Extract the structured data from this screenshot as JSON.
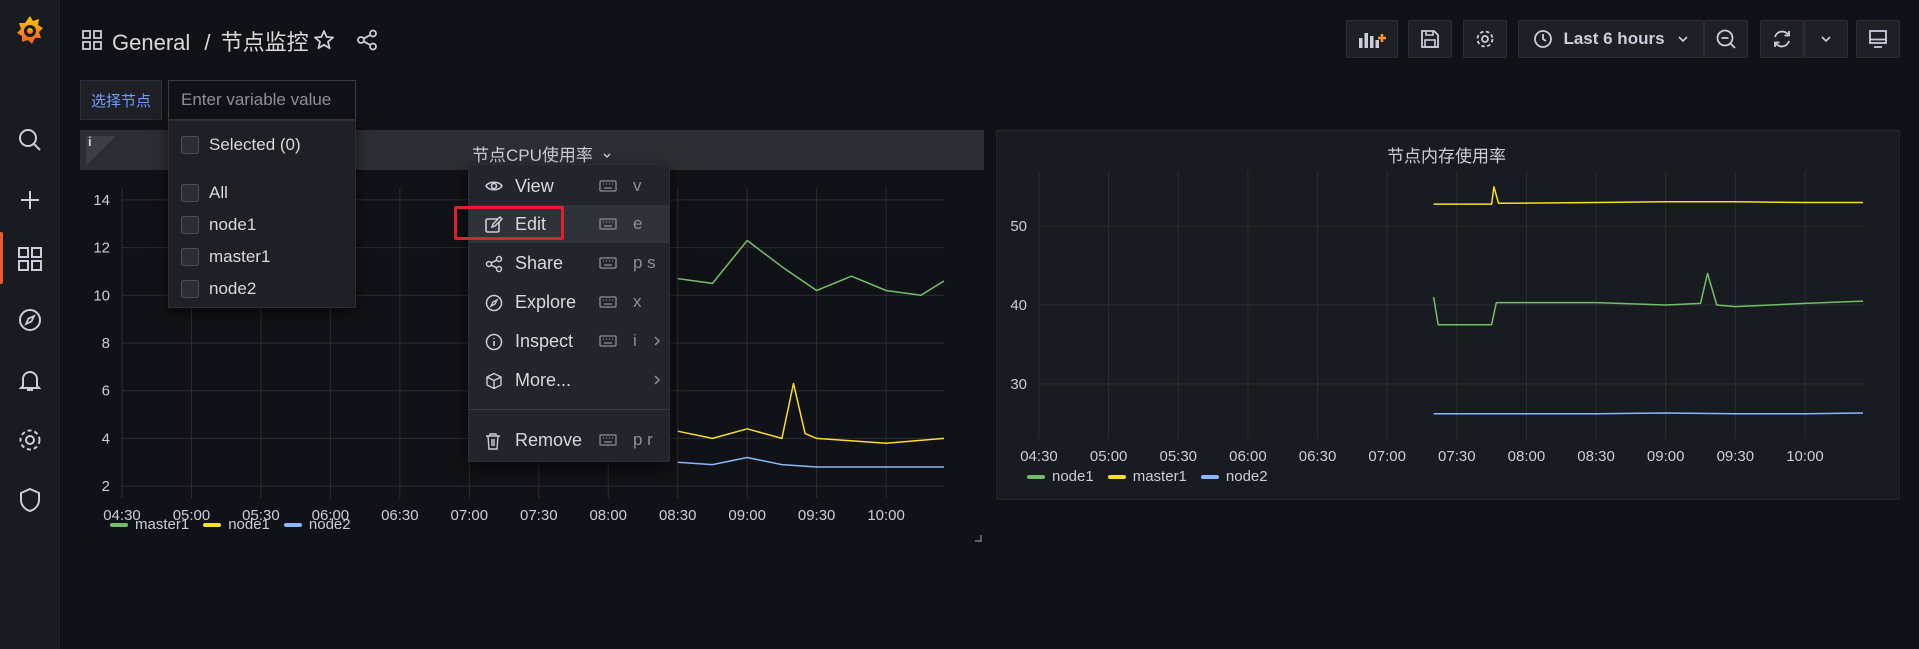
{
  "header": {
    "folder": "General",
    "separator": "/",
    "dashboard_title": "节点监控",
    "time_range": "Last 6 hours"
  },
  "variables": {
    "label": "选择节点",
    "input_placeholder": "Enter variable value",
    "dropdown": {
      "selected": "Selected (0)",
      "options": [
        "All",
        "node1",
        "master1",
        "node2"
      ]
    }
  },
  "panels": [
    {
      "title": "节点CPU使用率",
      "info_icon": "i",
      "legend": [
        {
          "name": "master1",
          "color": "#73bf69"
        },
        {
          "name": "node1",
          "color": "#fade2a"
        },
        {
          "name": "node2",
          "color": "#8ab8ff"
        }
      ]
    },
    {
      "title": "节点内存使用率",
      "legend": [
        {
          "name": "node1",
          "color": "#73bf69"
        },
        {
          "name": "master1",
          "color": "#fade2a"
        },
        {
          "name": "node2",
          "color": "#8ab8ff"
        }
      ]
    }
  ],
  "context_menu": [
    {
      "label": "View",
      "shortcut": "v",
      "icon": "eye-icon"
    },
    {
      "label": "Edit",
      "shortcut": "e",
      "icon": "edit-icon"
    },
    {
      "label": "Share",
      "shortcut": "p s",
      "icon": "share-icon"
    },
    {
      "label": "Explore",
      "shortcut": "x",
      "icon": "compass-icon"
    },
    {
      "label": "Inspect",
      "shortcut": "i",
      "icon": "info-icon"
    },
    {
      "label": "More...",
      "shortcut": "",
      "icon": "cube-icon"
    },
    {
      "label": "Remove",
      "shortcut": "p r",
      "icon": "trash-icon"
    }
  ],
  "chart_data": [
    {
      "type": "line",
      "title": "节点CPU使用率",
      "x_ticks": [
        "04:30",
        "05:00",
        "05:30",
        "06:00",
        "06:30",
        "07:00",
        "07:30",
        "08:00",
        "08:30",
        "09:00",
        "09:30",
        "10:00"
      ],
      "y_ticks": [
        2,
        4,
        6,
        8,
        10,
        12,
        14
      ],
      "ylim": [
        1.5,
        14.5
      ],
      "series": [
        {
          "name": "master1",
          "color": "#73bf69",
          "x": [
            "08:30",
            "08:45",
            "09:00",
            "09:15",
            "09:30",
            "09:45",
            "10:00",
            "10:15",
            "10:25"
          ],
          "y": [
            10.7,
            10.5,
            12.3,
            11.2,
            10.2,
            10.8,
            10.2,
            10.0,
            10.6
          ]
        },
        {
          "name": "node1",
          "color": "#fade2a",
          "x": [
            "08:30",
            "08:45",
            "09:00",
            "09:15",
            "09:20",
            "09:25",
            "09:30",
            "10:00",
            "10:25"
          ],
          "y": [
            4.3,
            4.0,
            4.4,
            4.0,
            6.3,
            4.2,
            4.0,
            3.8,
            4.0
          ]
        },
        {
          "name": "node2",
          "color": "#8ab8ff",
          "x": [
            "08:30",
            "08:45",
            "09:00",
            "09:15",
            "09:30",
            "10:00",
            "10:25"
          ],
          "y": [
            3.0,
            2.9,
            3.2,
            2.9,
            2.8,
            2.8,
            2.8
          ]
        }
      ]
    },
    {
      "type": "line",
      "title": "节点内存使用率",
      "x_ticks": [
        "04:30",
        "05:00",
        "05:30",
        "06:00",
        "06:30",
        "07:00",
        "07:30",
        "08:00",
        "08:30",
        "09:00",
        "09:30",
        "10:00"
      ],
      "y_ticks": [
        30,
        40,
        50
      ],
      "ylim": [
        23,
        57
      ],
      "series": [
        {
          "name": "node1",
          "color": "#73bf69",
          "x": [
            "07:20",
            "07:22",
            "07:45",
            "07:47",
            "08:30",
            "09:00",
            "09:15",
            "09:18",
            "09:22",
            "09:30",
            "10:00",
            "10:25"
          ],
          "y": [
            41.0,
            37.5,
            37.5,
            40.3,
            40.3,
            40.0,
            40.2,
            44.0,
            40.0,
            39.8,
            40.2,
            40.5
          ]
        },
        {
          "name": "master1",
          "color": "#fade2a",
          "x": [
            "07:20",
            "07:45",
            "07:46",
            "07:48",
            "08:30",
            "09:00",
            "09:30",
            "10:00",
            "10:25"
          ],
          "y": [
            52.8,
            52.8,
            55.0,
            52.9,
            53.0,
            53.1,
            53.1,
            53.0,
            53.0
          ]
        },
        {
          "name": "node2",
          "color": "#8ab8ff",
          "x": [
            "07:20",
            "08:00",
            "08:30",
            "09:00",
            "09:30",
            "10:00",
            "10:25"
          ],
          "y": [
            26.2,
            26.2,
            26.2,
            26.3,
            26.2,
            26.2,
            26.3
          ]
        }
      ]
    }
  ]
}
